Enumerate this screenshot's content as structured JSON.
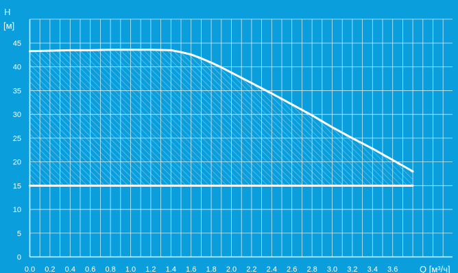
{
  "colors": {
    "background": "#0a9fdc",
    "grid": "#ffffff",
    "curve": "#ffffff",
    "hatch": "#ffffff"
  },
  "chart_data": {
    "type": "area",
    "ylabel_top": "H",
    "ylabel_unit": "[м]",
    "xlabel": "Q [м³/ч]",
    "xlim": [
      0.0,
      3.9
    ],
    "ylim": [
      0,
      45
    ],
    "grid": true,
    "x_ticks": [
      "0.0",
      "0.2",
      "0.4",
      "0.6",
      "0.8",
      "1.0",
      "1.2",
      "1.4",
      "1.6",
      "1.8",
      "2.0",
      "2.2",
      "2.4",
      "2.6",
      "2.8",
      "3.0",
      "3.2",
      "3.4",
      "3.6"
    ],
    "y_ticks": [
      "0",
      "5",
      "10",
      "15",
      "20",
      "25",
      "30",
      "35",
      "40",
      "45"
    ],
    "series": [
      {
        "kind": "curve",
        "x": [
          0.0,
          0.2,
          0.4,
          0.6,
          0.8,
          1.0,
          1.2,
          1.4,
          1.5,
          1.6,
          1.7,
          1.8,
          1.9,
          2.0,
          2.2,
          2.4,
          2.6,
          2.8,
          3.0,
          3.2,
          3.4,
          3.6,
          3.8
        ],
        "y": [
          43.3,
          43.4,
          43.5,
          43.5,
          43.6,
          43.6,
          43.6,
          43.5,
          43.1,
          42.6,
          41.8,
          40.9,
          39.9,
          38.8,
          36.6,
          34.4,
          32.1,
          29.8,
          27.3,
          25.0,
          22.8,
          20.4,
          18.0
        ]
      },
      {
        "kind": "floor",
        "x": [
          0.0,
          3.8
        ],
        "y": [
          15,
          15
        ]
      }
    ]
  }
}
